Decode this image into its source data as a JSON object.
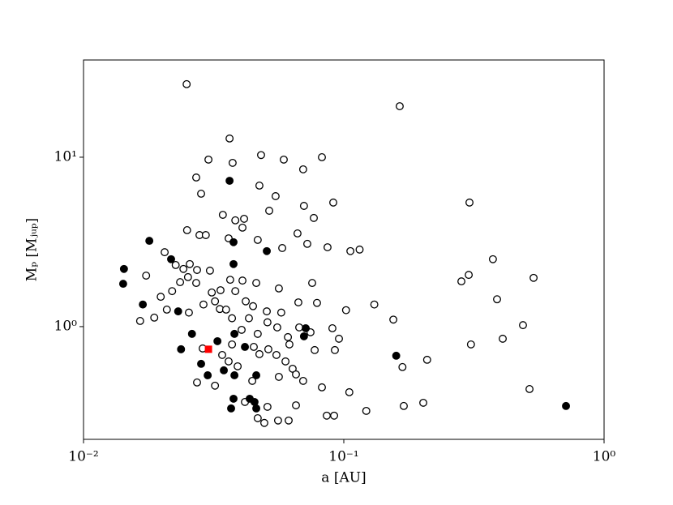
{
  "chart_data": {
    "type": "scatter",
    "xlabel": "a [AU]",
    "ylabel": "Mₚ [Mⱼᵤₚ]",
    "xscale": "log",
    "yscale": "log",
    "xlim": [
      0.01,
      1
    ],
    "ylim": [
      0.216,
      37.5
    ],
    "xticks": [
      {
        "value": 0.01,
        "label": "10⁻²"
      },
      {
        "value": 0.1,
        "label": "10⁻¹"
      },
      {
        "value": 1,
        "label": "10⁰"
      }
    ],
    "yticks": [
      {
        "value": 1,
        "label": "10⁰"
      },
      {
        "value": 10,
        "label": "10¹"
      }
    ],
    "series": [
      {
        "marker": "open-circle",
        "color": "#000000",
        "x": [
          0.0249,
          0.164,
          0.0364,
          0.0302,
          0.0481,
          0.0588,
          0.0698,
          0.0824,
          0.0271,
          0.0374,
          0.0474,
          0.0911,
          0.0547,
          0.0283,
          0.0343,
          0.0383,
          0.0414,
          0.0517,
          0.0703,
          0.0767,
          0.304,
          0.025,
          0.0279,
          0.0295,
          0.0361,
          0.0408,
          0.0467,
          0.058,
          0.0664,
          0.0724,
          0.0866,
          0.115,
          0.106,
          0.374,
          0.302,
          0.283,
          0.536,
          0.0205,
          0.0226,
          0.0242,
          0.0256,
          0.0273,
          0.0306,
          0.0336,
          0.0366,
          0.0408,
          0.0461,
          0.0563,
          0.0756,
          0.0174,
          0.0198,
          0.0219,
          0.0235,
          0.0252,
          0.0271,
          0.0311,
          0.032,
          0.0334,
          0.0383,
          0.042,
          0.0448,
          0.0506,
          0.0575,
          0.0669,
          0.0789,
          0.102,
          0.131,
          0.155,
          0.388,
          0.0165,
          0.0187,
          0.0209,
          0.0254,
          0.0289,
          0.0353,
          0.0372,
          0.0405,
          0.0432,
          0.0467,
          0.0509,
          0.0555,
          0.061,
          0.0674,
          0.0745,
          0.0904,
          0.0958,
          0.488,
          0.408,
          0.0287,
          0.0341,
          0.0391,
          0.0474,
          0.0551,
          0.0636,
          0.0773,
          0.0924,
          0.209,
          0.168,
          0.308,
          0.0273,
          0.032,
          0.0445,
          0.0563,
          0.0698,
          0.0824,
          0.105,
          0.122,
          0.17,
          0.202,
          0.517,
          0.0417,
          0.0509,
          0.0467,
          0.0495,
          0.0559,
          0.0614,
          0.0655,
          0.086,
          0.0918,
          0.0372,
          0.0451,
          0.0618,
          0.0361,
          0.0513,
          0.0597,
          0.0655
        ],
        "values": [
          27.0,
          20.0,
          12.9,
          9.68,
          10.3,
          9.68,
          8.48,
          10.0,
          7.59,
          9.26,
          6.8,
          5.4,
          5.89,
          6.09,
          4.57,
          4.24,
          4.33,
          4.83,
          5.16,
          4.38,
          5.4,
          3.71,
          3.47,
          3.47,
          3.32,
          3.84,
          3.25,
          2.91,
          3.55,
          3.08,
          2.94,
          2.85,
          2.79,
          2.5,
          2.02,
          1.85,
          1.94,
          2.75,
          2.31,
          2.19,
          2.34,
          2.16,
          2.14,
          1.64,
          1.89,
          1.87,
          1.81,
          1.68,
          1.81,
          2.0,
          1.5,
          1.62,
          1.83,
          1.96,
          1.81,
          1.59,
          1.41,
          1.27,
          1.62,
          1.41,
          1.32,
          1.23,
          1.21,
          1.39,
          1.38,
          1.25,
          1.35,
          1.1,
          1.45,
          1.08,
          1.13,
          1.26,
          1.21,
          1.35,
          1.26,
          1.12,
          0.957,
          1.12,
          0.906,
          1.06,
          0.989,
          0.867,
          0.989,
          0.926,
          0.978,
          0.848,
          1.02,
          0.848,
          0.743,
          0.68,
          0.583,
          0.688,
          0.68,
          0.564,
          0.727,
          0.727,
          0.637,
          0.577,
          0.785,
          0.468,
          0.448,
          0.478,
          0.505,
          0.478,
          0.438,
          0.41,
          0.318,
          0.34,
          0.355,
          0.428,
          0.359,
          0.336,
          0.288,
          0.27,
          0.279,
          0.279,
          0.343,
          0.298,
          0.298,
          0.785,
          0.759,
          0.785,
          0.623,
          0.735,
          0.623,
          0.522
        ]
      },
      {
        "marker": "filled-circle",
        "color": "#000000",
        "x": [
          0.0143,
          0.0142,
          0.0179,
          0.0169,
          0.0217,
          0.0231,
          0.0237,
          0.0261,
          0.0283,
          0.03,
          0.0327,
          0.0346,
          0.0364,
          0.0377,
          0.0377,
          0.038,
          0.0369,
          0.0377,
          0.038,
          0.0417,
          0.0435,
          0.0454,
          0.0461,
          0.0461,
          0.0506,
          0.0714,
          0.0703,
          0.159,
          0.714
        ],
        "values": [
          2.19,
          1.79,
          3.21,
          1.35,
          2.5,
          1.23,
          0.735,
          0.906,
          0.603,
          0.516,
          0.82,
          0.552,
          7.26,
          3.15,
          2.34,
          0.906,
          0.329,
          0.375,
          0.516,
          0.759,
          0.375,
          0.359,
          0.516,
          0.329,
          2.79,
          0.978,
          0.876,
          0.673,
          0.34
        ]
      },
      {
        "marker": "square",
        "color": "#ff0000",
        "x": [
          0.0302
        ],
        "values": [
          0.735
        ]
      }
    ]
  }
}
